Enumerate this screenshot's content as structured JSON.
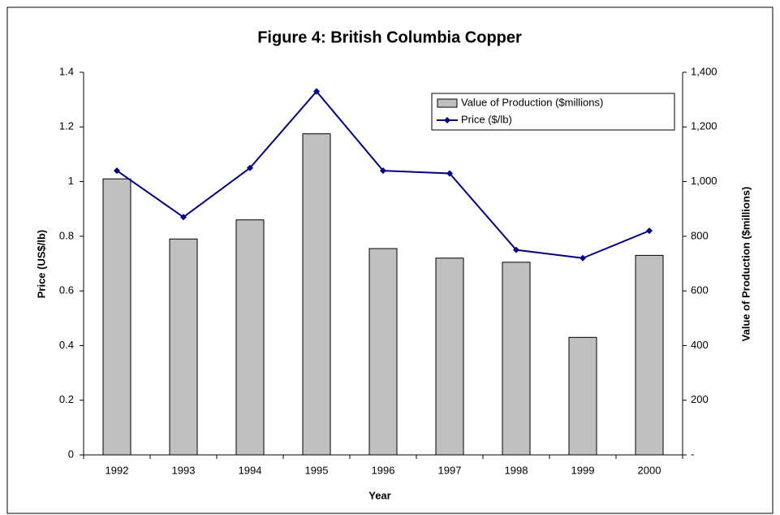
{
  "chart_data": {
    "type": "bar",
    "title": "Figure 4: British Columbia Copper",
    "xlabel": "Year",
    "ylabel": "Price (US$/lb)",
    "y2label": "Value of Production ($millions)",
    "categories": [
      "1992",
      "1993",
      "1994",
      "1995",
      "1996",
      "1997",
      "1998",
      "1999",
      "2000"
    ],
    "series": [
      {
        "name": "Value of Production ($millions)",
        "type": "bar",
        "axis": "y2",
        "color": "#c0c0c0",
        "values": [
          1010,
          790,
          860,
          1175,
          755,
          720,
          705,
          430,
          730
        ]
      },
      {
        "name": "Price ($/lb)",
        "type": "line",
        "axis": "y",
        "color": "#000080",
        "values": [
          1.04,
          0.87,
          1.05,
          1.33,
          1.04,
          1.03,
          0.75,
          0.72,
          0.82
        ]
      }
    ],
    "ylim": [
      0,
      1.4
    ],
    "yticks": [
      0,
      0.2,
      0.4,
      0.6,
      0.8,
      1,
      1.2,
      1.4
    ],
    "y2lim": [
      0,
      1400
    ],
    "y2ticks": [
      {
        "value": 0,
        "label": "-"
      },
      200,
      400,
      600,
      800,
      {
        "value": 1000,
        "label": "1,000"
      },
      {
        "value": 1200,
        "label": "1,200"
      },
      {
        "value": 1400,
        "label": "1,400"
      }
    ],
    "grid": false,
    "legend": "top-right"
  }
}
